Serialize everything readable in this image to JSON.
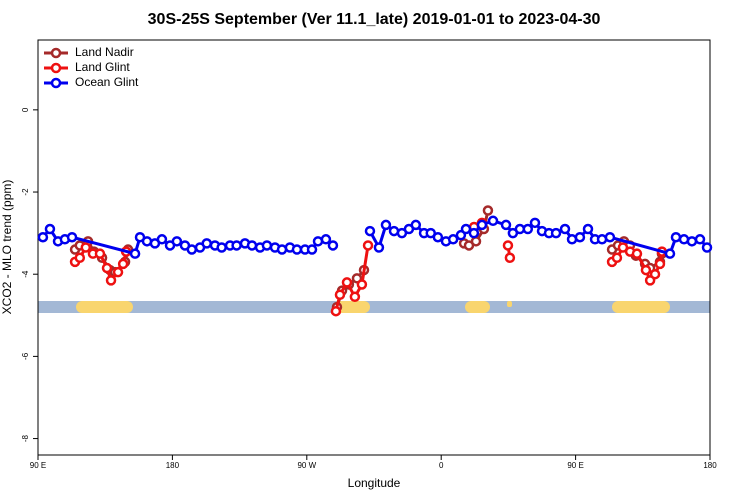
{
  "chart_data": {
    "type": "line",
    "title": "30S-25S September (Ver 11.1_late)   2019-01-01 to 2023-04-30",
    "x_label": "Longitude",
    "y_label": "XCO2 - MLO trend (ppm)",
    "xlim": [
      90,
      540
    ],
    "ylim": [
      -8.4,
      1.7
    ],
    "xticks": [
      {
        "value": 90,
        "label": "90 E"
      },
      180,
      {
        "value": 270,
        "label": "90 W"
      },
      {
        "value": 360,
        "label": "0"
      },
      {
        "value": 450,
        "label": "90 E"
      },
      {
        "value": 540,
        "label": "180"
      }
    ],
    "yticks": [
      0,
      -2,
      -4,
      -6,
      -8
    ],
    "legend": "top-left",
    "series": [
      {
        "name": "Land Nadir",
        "color": "#a52a2a",
        "x": [
          114.8,
          118,
          123.5,
          127.5,
          132.9,
          138.2,
          141.6,
          148.3,
          150.3,
          null,
          290.2,
          293.6,
          298.2,
          303.6,
          308.3,
          null,
          375.3,
          378.6,
          383.3,
          388.6,
          391.3,
          null,
          474.4,
          478.4,
          482.4,
          486.4,
          490.4,
          496.5,
          499.9,
          506.5,
          507.8
        ],
        "values": [
          -3.4,
          -3.3,
          -3.2,
          -3.45,
          -3.6,
          -3.9,
          -3.95,
          -3.7,
          -3.4,
          null,
          -4.8,
          -4.4,
          -4.25,
          -4.1,
          -3.9,
          null,
          -3.25,
          -3.3,
          -3.2,
          -2.9,
          -2.45,
          null,
          -3.4,
          -3.3,
          -3.2,
          -3.3,
          -3.55,
          -3.75,
          -3.85,
          -3.7,
          -3.5
        ]
      },
      {
        "name": "Land Glint",
        "color": "#ee1111",
        "x": [
          114.8,
          118,
          122,
          126.8,
          131.5,
          136.2,
          138.9,
          143.6,
          147,
          149,
          null,
          289.5,
          292.2,
          296.9,
          302.2,
          306.9,
          311,
          null,
          382,
          387.3,
          null,
          404.7,
          406,
          null,
          474.4,
          477.7,
          481.7,
          486.5,
          491.1,
          497.1,
          499.9,
          503.2,
          506.5,
          507.8
        ],
        "values": [
          -3.7,
          -3.6,
          -3.35,
          -3.5,
          -3.5,
          -3.85,
          -4.15,
          -3.95,
          -3.75,
          -3.45,
          null,
          -4.9,
          -4.5,
          -4.2,
          -4.55,
          -4.25,
          -3.3,
          null,
          -2.85,
          -2.75,
          null,
          -3.3,
          -3.6,
          null,
          -3.7,
          -3.6,
          -3.35,
          -3.45,
          -3.5,
          -3.9,
          -4.15,
          -4.0,
          -3.75,
          -3.45
        ]
      },
      {
        "name": "Ocean Glint",
        "color": "#0000ee",
        "x": [
          93.3,
          98,
          103.4,
          108,
          112.8,
          155,
          158.3,
          163,
          168.3,
          173,
          178.4,
          183,
          188.4,
          193,
          198.5,
          203,
          208.5,
          213,
          218.6,
          223,
          228.6,
          233.3,
          238.7,
          243.3,
          248.7,
          253.4,
          258.7,
          263.4,
          268.8,
          273.5,
          277.5,
          282.8,
          287.5,
          null,
          312.3,
          318.3,
          323,
          328.4,
          333.7,
          338.4,
          343,
          348.5,
          353,
          357.8,
          363.2,
          368,
          373.2,
          376.6,
          381.9,
          387.3,
          394.7,
          403.4,
          408,
          412.7,
          418,
          422.8,
          427.5,
          432.2,
          436.9,
          442.9,
          447.6,
          452.9,
          458.3,
          463,
          467.7,
          473,
          513.2,
          517.2,
          522.6,
          527.9,
          533.3,
          538
        ],
        "values": [
          -3.1,
          -2.9,
          -3.2,
          -3.15,
          -3.1,
          -3.5,
          -3.1,
          -3.2,
          -3.25,
          -3.15,
          -3.3,
          -3.2,
          -3.3,
          -3.4,
          -3.35,
          -3.25,
          -3.3,
          -3.35,
          -3.3,
          -3.3,
          -3.25,
          -3.3,
          -3.35,
          -3.3,
          -3.35,
          -3.4,
          -3.35,
          -3.4,
          -3.4,
          -3.4,
          -3.2,
          -3.15,
          -3.3,
          null,
          -2.95,
          -3.35,
          -2.8,
          -2.95,
          -3.0,
          -2.9,
          -2.8,
          -3.0,
          -3.0,
          -3.1,
          -3.2,
          -3.15,
          -3.05,
          -2.9,
          -3.0,
          -2.8,
          -2.7,
          -2.8,
          -3.0,
          -2.9,
          -2.9,
          -2.75,
          -2.95,
          -3.0,
          -3.0,
          -2.9,
          -3.15,
          -3.1,
          -2.9,
          -3.15,
          -3.15,
          -3.1,
          -3.5,
          -3.1,
          -3.15,
          -3.2,
          -3.15,
          -3.35
        ]
      }
    ]
  }
}
